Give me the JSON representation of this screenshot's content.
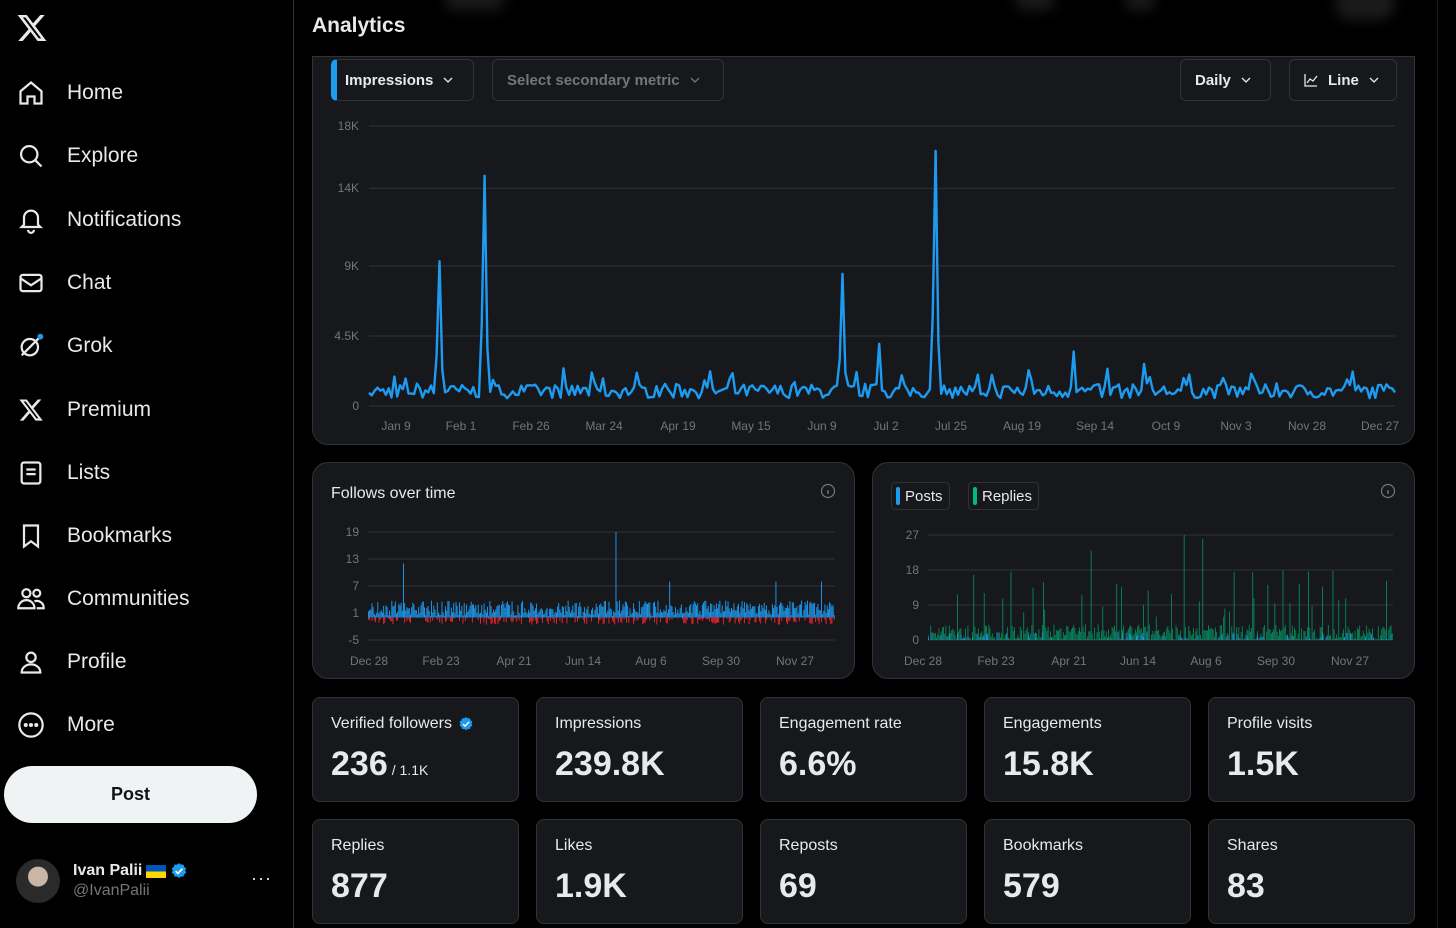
{
  "nav": {
    "items": [
      {
        "label": "Home"
      },
      {
        "label": "Explore"
      },
      {
        "label": "Notifications"
      },
      {
        "label": "Chat"
      },
      {
        "label": "Grok"
      },
      {
        "label": "Premium"
      },
      {
        "label": "Lists"
      },
      {
        "label": "Bookmarks"
      },
      {
        "label": "Communities"
      },
      {
        "label": "Profile"
      },
      {
        "label": "More"
      }
    ],
    "post_label": "Post"
  },
  "account": {
    "name": "Ivan Palii",
    "handle": "@IvanPalii",
    "more": "···"
  },
  "page": {
    "title": "Analytics"
  },
  "controls": {
    "primary_metric": "Impressions",
    "secondary_metric": "Select secondary metric",
    "granularity": "Daily",
    "chart_type": "Line"
  },
  "colors": {
    "accent": "#1d9bf0",
    "negative": "#f4212e",
    "replies": "#00ba7c"
  },
  "chart_data": [
    {
      "type": "line",
      "title": "Impressions",
      "y_ticks": [
        "18K",
        "14K",
        "9K",
        "4.5K",
        "0"
      ],
      "ylim": [
        0,
        18000
      ],
      "x_ticks": [
        "Jan 9",
        "Feb 1",
        "Feb 26",
        "Mar 24",
        "Apr 19",
        "May 15",
        "Jun 9",
        "Jul 2",
        "Jul 25",
        "Aug 19",
        "Sep 14",
        "Oct 9",
        "Nov 3",
        "Nov 28",
        "Dec 27"
      ],
      "peaks": [
        {
          "day": 25,
          "value": 9300
        },
        {
          "day": 41,
          "value": 14800
        },
        {
          "day": 168,
          "value": 8500
        },
        {
          "day": 181,
          "value": 4000
        },
        {
          "day": 201,
          "value": 16400
        },
        {
          "day": 221,
          "value": 2000
        },
        {
          "day": 234,
          "value": 2300
        },
        {
          "day": 250,
          "value": 3500
        },
        {
          "day": 262,
          "value": 2400
        },
        {
          "day": 275,
          "value": 2700
        },
        {
          "day": 289,
          "value": 1800
        },
        {
          "day": 303,
          "value": 1800
        },
        {
          "day": 314,
          "value": 1700
        }
      ],
      "baseline": 500
    },
    {
      "type": "bar",
      "title": "Follows over time",
      "y_ticks": [
        "19",
        "13",
        "7",
        "1",
        "-5"
      ],
      "ylim": [
        -5,
        19
      ],
      "x_ticks": [
        "Dec 28",
        "Feb 23",
        "Apr 21",
        "Jun 14",
        "Aug 6",
        "Sep 30",
        "Nov 27"
      ],
      "peaks": [
        {
          "day": 30,
          "value": 12
        },
        {
          "day": 212,
          "value": 19
        },
        {
          "day": 258,
          "value": 8
        },
        {
          "day": 349,
          "value": 8
        },
        {
          "day": 388,
          "value": 8
        }
      ]
    },
    {
      "type": "bar",
      "title": "Posts / Replies",
      "series": [
        {
          "name": "Posts"
        },
        {
          "name": "Replies"
        }
      ],
      "y_ticks": [
        "27",
        "18",
        "9",
        "0"
      ],
      "ylim": [
        0,
        27
      ],
      "x_ticks": [
        "Dec 28",
        "Feb 23",
        "Apr 21",
        "Jun 14",
        "Aug 6",
        "Sep 30",
        "Nov 27"
      ]
    }
  ],
  "stats": [
    {
      "label": "Verified followers",
      "value": "236",
      "sub": "/ 1.1K"
    },
    {
      "label": "Impressions",
      "value": "239.8K"
    },
    {
      "label": "Engagement rate",
      "value": "6.6%"
    },
    {
      "label": "Engagements",
      "value": "15.8K"
    },
    {
      "label": "Profile visits",
      "value": "1.5K"
    },
    {
      "label": "Replies",
      "value": "877"
    },
    {
      "label": "Likes",
      "value": "1.9K"
    },
    {
      "label": "Reposts",
      "value": "69"
    },
    {
      "label": "Bookmarks",
      "value": "579"
    },
    {
      "label": "Shares",
      "value": "83"
    }
  ]
}
